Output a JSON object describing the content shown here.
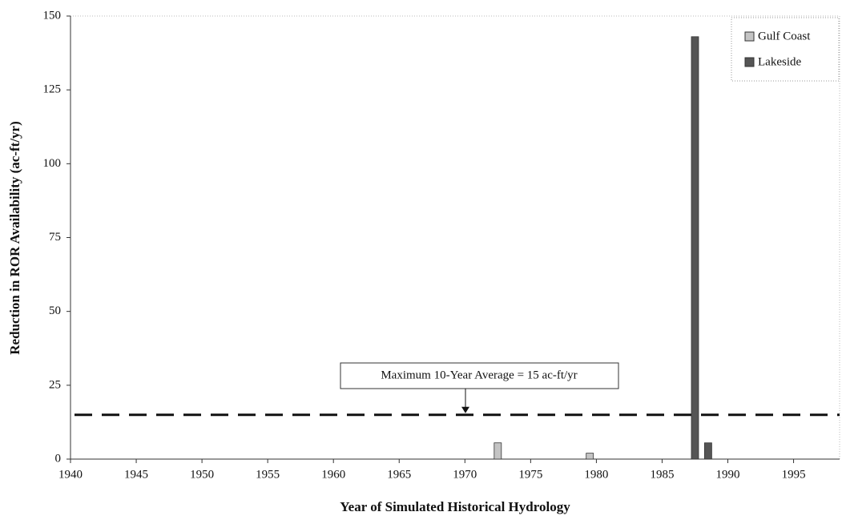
{
  "chart_data": {
    "type": "bar",
    "x_label": "Year of Simulated Historical Hydrology",
    "y_label": "Reduction in ROR Availability (ac-ft/yr)",
    "x": [
      1972.5,
      1979.5,
      1987.5,
      1988.5
    ],
    "series": [
      {
        "name": "Gulf Coast",
        "color": "#c4c4c4",
        "values": [
          5.5,
          2,
          null,
          null
        ]
      },
      {
        "name": "Lakeside",
        "color": "#555555",
        "values": [
          null,
          null,
          143,
          5.5
        ]
      }
    ],
    "xlim": [
      1940,
      1998.5
    ],
    "xticks": [
      1940,
      1945,
      1950,
      1955,
      1960,
      1965,
      1970,
      1975,
      1980,
      1985,
      1990,
      1995
    ],
    "ylim": [
      0,
      150
    ],
    "yticks": [
      0,
      25,
      50,
      75,
      100,
      125,
      150
    ],
    "reference_line": {
      "value": 15,
      "label": "Maximum 10-Year Average = 15 ac-ft/yr"
    },
    "legend": "top-right",
    "grid": false
  }
}
